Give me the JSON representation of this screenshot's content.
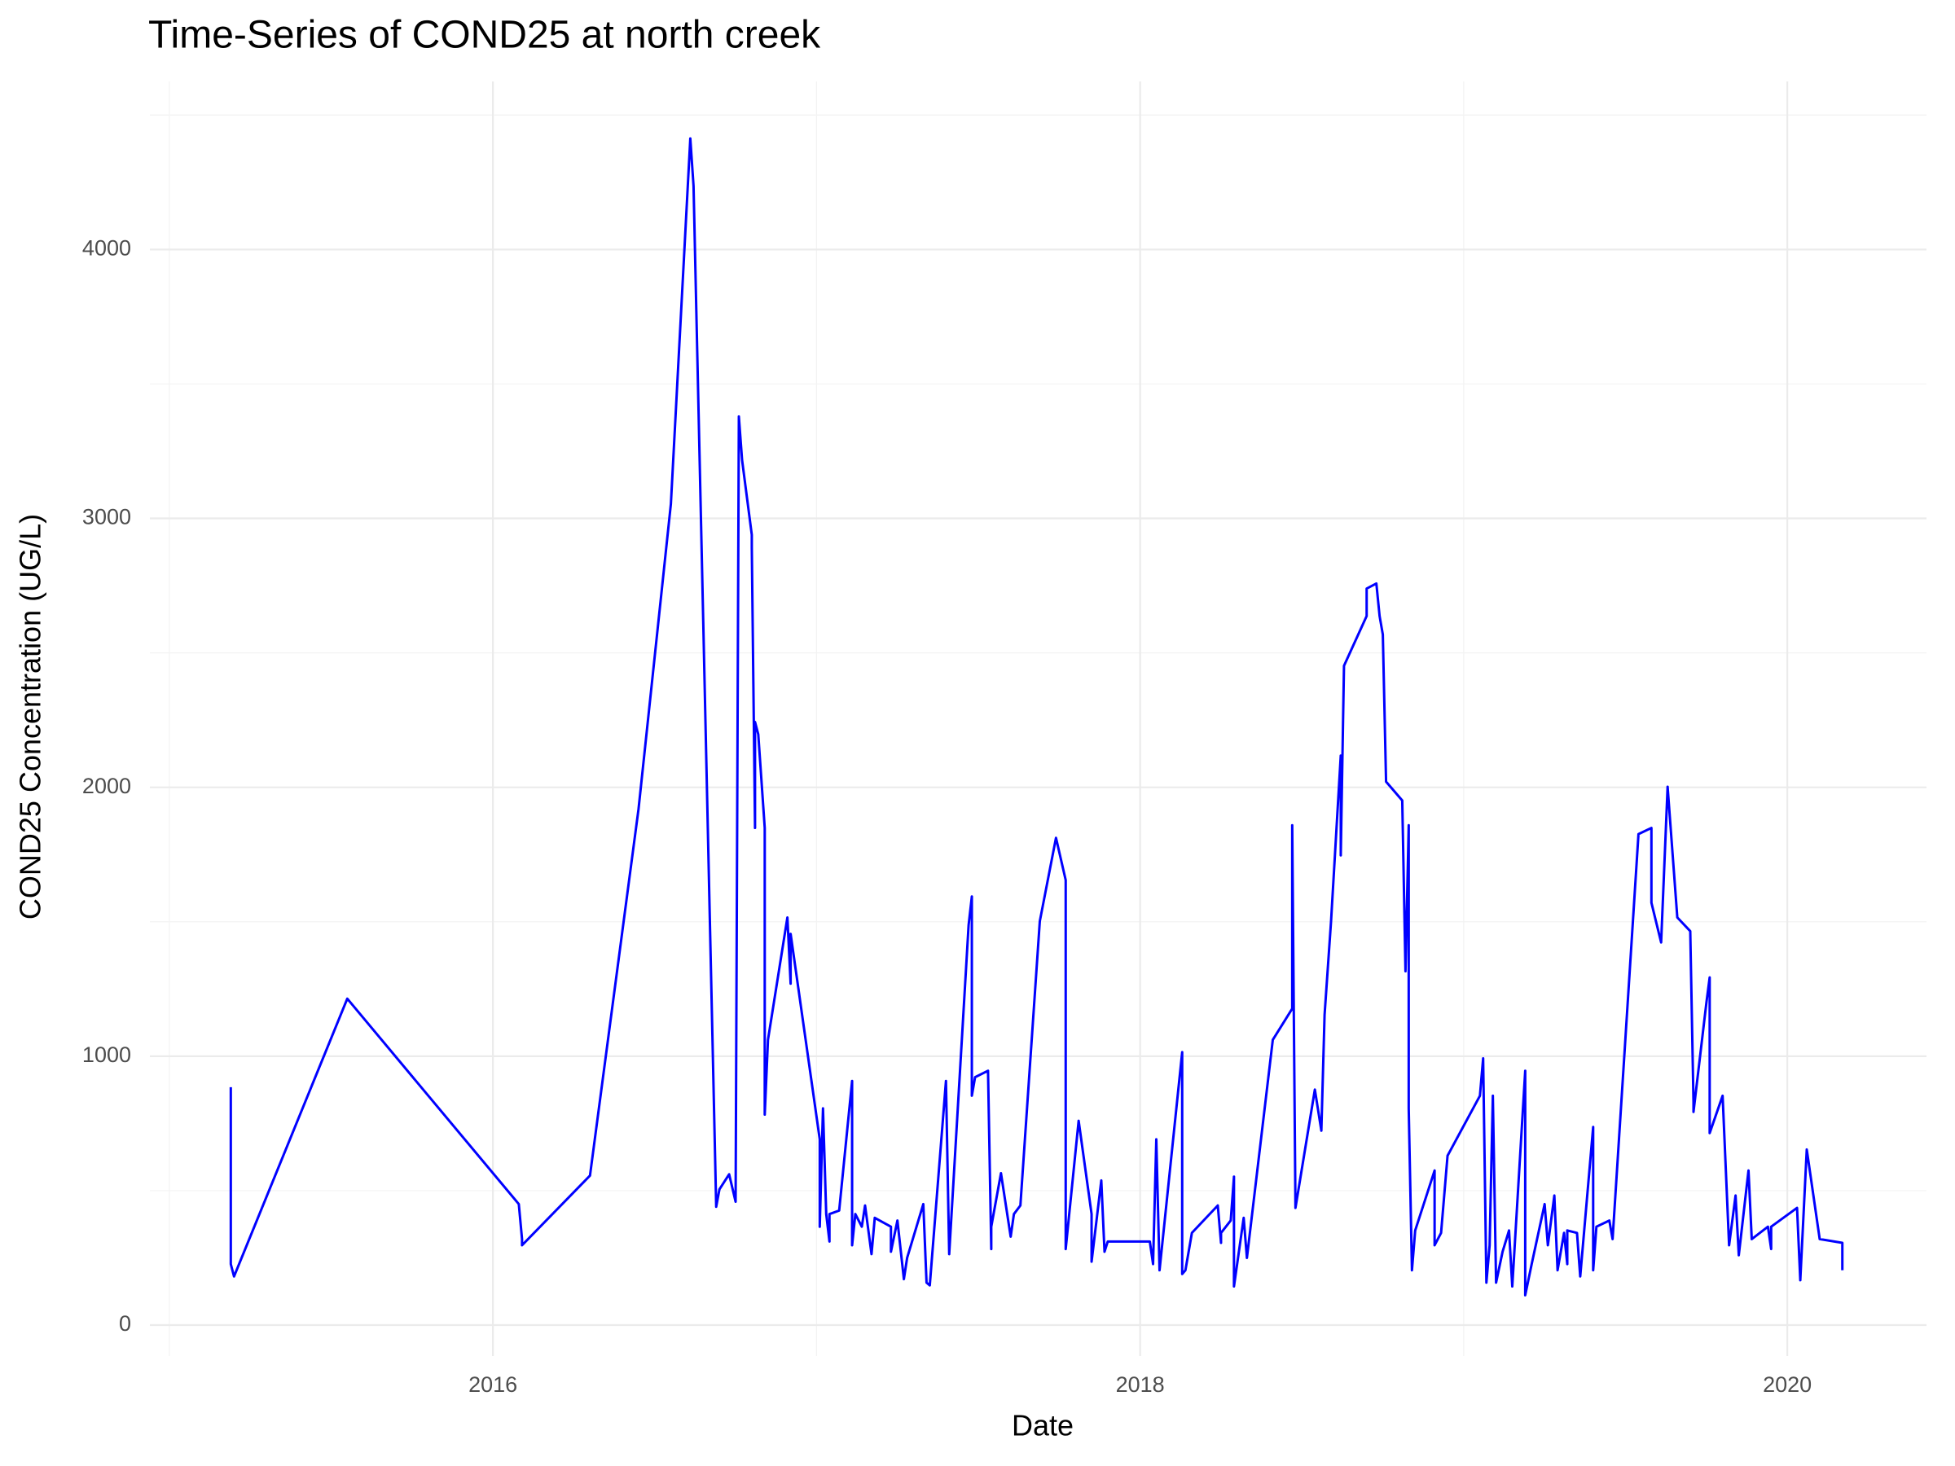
{
  "chart_data": {
    "type": "line",
    "title": "Time-Series of COND25 at north creek",
    "xlabel": "Date",
    "ylabel": "COND25 Concentration (UG/L)",
    "color": "#0000ff",
    "grid": true,
    "xlim": [
      2014.94,
      2020.43
    ],
    "xticks": [
      2016,
      2018,
      2020
    ],
    "x_minor_grid": [
      2015,
      2017,
      2019
    ],
    "ylim": [
      -115,
      4625
    ],
    "yticks": [
      0,
      1000,
      2000,
      3000,
      4000
    ],
    "y_minor_grid": [
      500,
      1500,
      2500,
      3500,
      4500
    ],
    "x": [
      2015.19,
      2015.19,
      2015.2,
      2015.55,
      2016.08,
      2016.09,
      2016.09,
      2016.3,
      2016.45,
      2016.55,
      2016.61,
      2016.62,
      2016.65,
      2016.69,
      2016.7,
      2016.73,
      2016.75,
      2016.76,
      2016.77,
      2016.8,
      2016.8,
      2016.81,
      2016.81,
      2016.82,
      2016.84,
      2016.84,
      2016.85,
      2016.91,
      2016.92,
      2016.92,
      2017.01,
      2017.01,
      2017.02,
      2017.03,
      2017.04,
      2017.04,
      2017.07,
      2017.11,
      2017.11,
      2017.12,
      2017.14,
      2017.15,
      2017.17,
      2017.18,
      2017.23,
      2017.23,
      2017.25,
      2017.27,
      2017.28,
      2017.33,
      2017.34,
      2017.35,
      2017.4,
      2017.41,
      2017.47,
      2017.48,
      2017.48,
      2017.49,
      2017.53,
      2017.54,
      2017.54,
      2017.57,
      2017.6,
      2017.61,
      2017.63,
      2017.69,
      2017.74,
      2017.77,
      2017.77,
      2017.81,
      2017.85,
      2017.85,
      2017.88,
      2017.89,
      2017.9,
      2018.03,
      2018.04,
      2018.05,
      2018.06,
      2018.13,
      2018.13,
      2018.14,
      2018.16,
      2018.24,
      2018.25,
      2018.25,
      2018.28,
      2018.29,
      2018.29,
      2018.32,
      2018.33,
      2018.41,
      2018.47,
      2018.47,
      2018.48,
      2018.54,
      2018.56,
      2018.57,
      2018.59,
      2018.62,
      2018.62,
      2018.63,
      2018.7,
      2018.7,
      2018.73,
      2018.74,
      2018.75,
      2018.76,
      2018.81,
      2018.82,
      2018.83,
      2018.83,
      2018.84,
      2018.85,
      2018.91,
      2018.91,
      2018.93,
      2018.95,
      2019.05,
      2019.06,
      2019.07,
      2019.08,
      2019.09,
      2019.1,
      2019.12,
      2019.14,
      2019.15,
      2019.19,
      2019.19,
      2019.21,
      2019.25,
      2019.26,
      2019.28,
      2019.29,
      2019.31,
      2019.32,
      2019.32,
      2019.35,
      2019.36,
      2019.4,
      2019.4,
      2019.41,
      2019.45,
      2019.46,
      2019.54,
      2019.58,
      2019.58,
      2019.61,
      2019.63,
      2019.66,
      2019.7,
      2019.71,
      2019.71,
      2019.75,
      2019.76,
      2019.76,
      2019.8,
      2019.82,
      2019.84,
      2019.85,
      2019.88,
      2019.89,
      2019.94,
      2019.95,
      2019.95,
      2020.03,
      2020.04,
      2020.06,
      2020.1,
      2020.17,
      2020.17
    ],
    "values": [
      885,
      227,
      181,
      1214,
      450,
      320,
      297,
      556,
      1919,
      3054,
      4413,
      4236,
      2614,
      440,
      505,
      561,
      459,
      3379,
      3217,
      2939,
      2892,
      1849,
      2243,
      2197,
      1849,
      783,
      1061,
      1516,
      1270,
      1455,
      691,
      366,
      806,
      413,
      311,
      413,
      426,
      908,
      297,
      413,
      366,
      445,
      264,
      399,
      366,
      273,
      389,
      171,
      250,
      450,
      158,
      148,
      908,
      264,
      1488,
      1594,
      853,
      922,
      946,
      283,
      366,
      565,
      329,
      413,
      445,
      1502,
      1812,
      1655,
      283,
      760,
      413,
      236,
      538,
      273,
      311,
      311,
      227,
      691,
      204,
      1015,
      190,
      204,
      343,
      445,
      306,
      343,
      389,
      552,
      144,
      399,
      250,
      1061,
      1177,
      1859,
      436,
      876,
      723,
      1154,
      1502,
      2118,
      1747,
      2452,
      2637,
      2739,
      2758,
      2637,
      2568,
      2021,
      1951,
      1316,
      1859,
      806,
      204,
      352,
      575,
      297,
      343,
      630,
      853,
      992,
      158,
      297,
      853,
      158,
      273,
      352,
      144,
      946,
      111,
      227,
      450,
      297,
      482,
      204,
      343,
      227,
      352,
      343,
      181,
      737,
      204,
      366,
      389,
      320,
      1826,
      1849,
      1571,
      1423,
      2002,
      1516,
      1465,
      830,
      793,
      1200,
      1293,
      714,
      853,
      297,
      482,
      260,
      575,
      320,
      366,
      283,
      366,
      436,
      167,
      653,
      320,
      306,
      204
    ]
  }
}
